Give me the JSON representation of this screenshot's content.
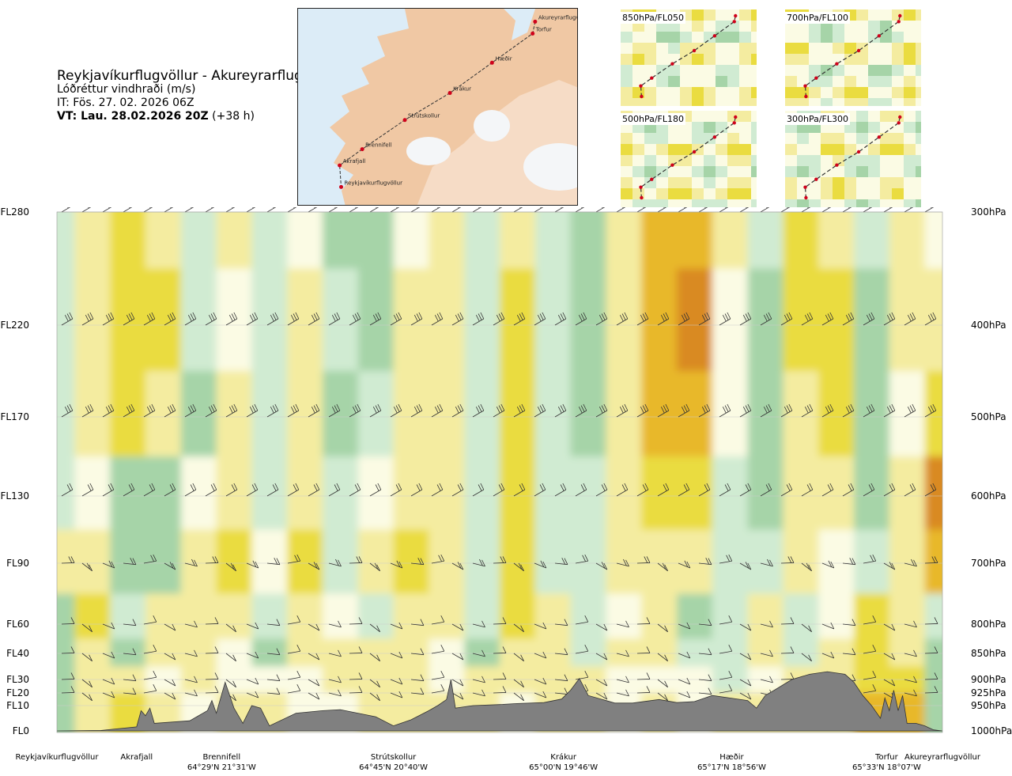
{
  "header": {
    "title": "Reykjavíkurflugvöllur - Akureyrarflugvöllur",
    "subtitle": "Lóðréttur vindhraði (m/s)",
    "issue_time": "IT: Fös. 27. 02. 2026 06Z",
    "valid_time_bold": "VT: Lau. 28.02.2026 20Z",
    "valid_time_rest": "(+38 h)"
  },
  "route_map": {
    "points": [
      {
        "name": "Akureyrarflugvöllur",
        "lon": -18.07,
        "lat": 65.66
      },
      {
        "name": "Torfur",
        "lon": -18.12,
        "lat": 65.55
      },
      {
        "name": "Hæðir",
        "lon": -18.93,
        "lat": 65.28
      },
      {
        "name": "Krákur",
        "lon": -19.77,
        "lat": 65.0
      },
      {
        "name": "Strútskollur",
        "lon": -20.67,
        "lat": 64.75
      },
      {
        "name": "Brennifell",
        "lon": -21.52,
        "lat": 64.48
      },
      {
        "name": "Akrafjall",
        "lon": -21.97,
        "lat": 64.33
      },
      {
        "name": "Reykjavíkurflugvöllur",
        "lon": -21.94,
        "lat": 64.13
      }
    ]
  },
  "mini_maps": [
    {
      "label": "850hPa/FL050"
    },
    {
      "label": "700hPa/FL100"
    },
    {
      "label": "500hPa/FL180"
    },
    {
      "label": "300hPa/FL300"
    }
  ],
  "chart_data": {
    "type": "heatmap",
    "title": "Reykjavíkurflugvöllur - Akureyrarflugvöllur",
    "variable": "Lóðréttur vindhraði (m/s)",
    "colors": {
      "strong_down": "#69b56c",
      "down": "#a6d4a8",
      "weak_down": "#d0ebd2",
      "neutral": "#fbfbe4",
      "weak_up": "#f4eca0",
      "up": "#eadc40",
      "strong_up": "#e8b82a",
      "very_strong_up": "#d98a24",
      "terrain": "#808080"
    },
    "left_axis_levels": [
      {
        "label": "FL280",
        "hpa": 300
      },
      {
        "label": "FL220",
        "hpa": 400
      },
      {
        "label": "FL170",
        "hpa": 500
      },
      {
        "label": "FL130",
        "hpa": 600
      },
      {
        "label": "FL90",
        "hpa": 700
      },
      {
        "label": "FL60",
        "hpa": 800
      },
      {
        "label": "FL40",
        "hpa": 850
      },
      {
        "label": "FL30",
        "hpa": 900
      },
      {
        "label": "FL20",
        "hpa": 925
      },
      {
        "label": "FL10",
        "hpa": 950
      },
      {
        "label": "FL0",
        "hpa": 1000
      }
    ],
    "right_axis_levels": [
      "300hPa",
      "400hPa",
      "500hPa",
      "600hPa",
      "700hPa",
      "800hPa",
      "850hPa",
      "900hPa",
      "925hPa",
      "950hPa",
      "1000hPa"
    ],
    "waypoints": [
      {
        "name": "Reykjavíkurflugvöllur",
        "coord": "",
        "pos": 0.0
      },
      {
        "name": "Akrafjall",
        "coord": "",
        "pos": 0.09
      },
      {
        "name": "Brennifell",
        "coord": "64°29'N 21°31'W",
        "pos": 0.186
      },
      {
        "name": "Strútskollur",
        "coord": "64°45'N 20°40'W",
        "pos": 0.38
      },
      {
        "name": "Krákur",
        "coord": "65°00'N 19°46'W",
        "pos": 0.572
      },
      {
        "name": "Hæðir",
        "coord": "65°17'N 18°56'W",
        "pos": 0.762
      },
      {
        "name": "Torfur",
        "coord": "65°33'N 18°07'W",
        "pos": 0.937
      },
      {
        "name": "Akureyrarflugvöllur",
        "coord": "",
        "pos": 1.0
      }
    ],
    "terrain_hpa": [
      [
        0.0,
        1000
      ],
      [
        0.05,
        999
      ],
      [
        0.09,
        992
      ],
      [
        0.095,
        960
      ],
      [
        0.1,
        970
      ],
      [
        0.105,
        955
      ],
      [
        0.11,
        985
      ],
      [
        0.15,
        980
      ],
      [
        0.17,
        960
      ],
      [
        0.175,
        940
      ],
      [
        0.18,
        965
      ],
      [
        0.19,
        905
      ],
      [
        0.2,
        955
      ],
      [
        0.21,
        985
      ],
      [
        0.22,
        950
      ],
      [
        0.23,
        955
      ],
      [
        0.24,
        990
      ],
      [
        0.27,
        965
      ],
      [
        0.3,
        960
      ],
      [
        0.32,
        958
      ],
      [
        0.34,
        965
      ],
      [
        0.36,
        972
      ],
      [
        0.38,
        990
      ],
      [
        0.4,
        978
      ],
      [
        0.42,
        960
      ],
      [
        0.43,
        950
      ],
      [
        0.44,
        938
      ],
      [
        0.445,
        900
      ],
      [
        0.45,
        955
      ],
      [
        0.47,
        950
      ],
      [
        0.5,
        948
      ],
      [
        0.52,
        946
      ],
      [
        0.55,
        944
      ],
      [
        0.57,
        937
      ],
      [
        0.58,
        920
      ],
      [
        0.59,
        898
      ],
      [
        0.6,
        930
      ],
      [
        0.63,
        945
      ],
      [
        0.65,
        945
      ],
      [
        0.68,
        938
      ],
      [
        0.7,
        944
      ],
      [
        0.72,
        942
      ],
      [
        0.74,
        930
      ],
      [
        0.76,
        935
      ],
      [
        0.78,
        940
      ],
      [
        0.79,
        955
      ],
      [
        0.8,
        930
      ],
      [
        0.81,
        920
      ],
      [
        0.83,
        900
      ],
      [
        0.85,
        890
      ],
      [
        0.87,
        885
      ],
      [
        0.89,
        890
      ],
      [
        0.9,
        905
      ],
      [
        0.91,
        930
      ],
      [
        0.92,
        950
      ],
      [
        0.93,
        975
      ],
      [
        0.935,
        935
      ],
      [
        0.94,
        960
      ],
      [
        0.945,
        920
      ],
      [
        0.95,
        960
      ],
      [
        0.955,
        930
      ],
      [
        0.96,
        985
      ],
      [
        0.97,
        985
      ],
      [
        0.98,
        990
      ],
      [
        0.99,
        998
      ],
      [
        1.0,
        1000
      ]
    ],
    "vertical_velocity": {
      "x": [
        0.0,
        0.04,
        0.08,
        0.12,
        0.16,
        0.2,
        0.24,
        0.28,
        0.32,
        0.36,
        0.4,
        0.44,
        0.48,
        0.52,
        0.56,
        0.6,
        0.64,
        0.68,
        0.72,
        0.76,
        0.8,
        0.84,
        0.88,
        0.92,
        0.96,
        1.0
      ],
      "levels_hpa": [
        300,
        400,
        500,
        600,
        700,
        800,
        850,
        900,
        950
      ],
      "values": [
        [
          -0.4,
          0.3,
          1.0,
          0.6,
          -0.2,
          0.3,
          -0.3,
          0.2,
          -0.6,
          -0.5,
          0.2,
          0.5,
          -0.2,
          0.6,
          -0.3,
          -0.6,
          0.4,
          1.6,
          1.8,
          0.3,
          -0.3,
          1.1,
          0.6,
          -0.4,
          0.3,
          0.2
        ],
        [
          -0.3,
          0.5,
          1.3,
          0.9,
          -0.4,
          0.2,
          -0.4,
          0.4,
          -0.3,
          -0.8,
          0.4,
          0.7,
          -0.4,
          0.9,
          -0.4,
          -0.7,
          0.5,
          2.0,
          2.2,
          0.2,
          -0.5,
          1.0,
          0.9,
          -0.8,
          0.4,
          0.3
        ],
        [
          -0.2,
          0.6,
          0.8,
          0.6,
          -0.5,
          0.3,
          -0.2,
          0.3,
          -0.5,
          -0.4,
          0.6,
          0.5,
          -0.4,
          0.8,
          -0.3,
          -0.6,
          0.6,
          1.5,
          1.6,
          0.2,
          -0.6,
          0.7,
          0.8,
          -0.6,
          0.2,
          0.8
        ],
        [
          -0.3,
          0.1,
          -0.6,
          -0.8,
          0.2,
          0.5,
          -0.4,
          0.6,
          -0.3,
          0.2,
          0.7,
          0.4,
          -0.2,
          1.0,
          -0.2,
          -0.4,
          0.4,
          0.9,
          1.0,
          -0.3,
          -0.5,
          0.4,
          0.3,
          -0.5,
          0.3,
          2.5
        ],
        [
          0.3,
          0.7,
          -0.5,
          -0.6,
          0.4,
          0.8,
          0.2,
          0.9,
          -0.2,
          0.4,
          1.0,
          0.5,
          -0.3,
          1.1,
          -0.2,
          -0.3,
          0.3,
          0.6,
          0.5,
          -0.4,
          -0.3,
          0.3,
          0.2,
          -0.3,
          0.4,
          1.5
        ],
        [
          -0.5,
          1.0,
          -0.3,
          0.6,
          0.3,
          0.5,
          -0.4,
          0.6,
          0.2,
          -0.3,
          0.6,
          0.4,
          -0.4,
          0.8,
          0.3,
          -0.3,
          0.2,
          0.3,
          -0.5,
          -0.3,
          0.4,
          -0.3,
          0.2,
          0.9,
          0.3,
          -0.4
        ],
        [
          -0.6,
          0.4,
          -0.5,
          0.3,
          0.4,
          0.2,
          -0.6,
          0.3,
          0.4,
          0.3,
          0.3,
          0.2,
          -0.6,
          0.4,
          0.5,
          -0.2,
          0.3,
          0.3,
          -0.4,
          -0.2,
          0.3,
          -0.2,
          0.3,
          1.1,
          0.5,
          -0.5
        ],
        [
          -0.6,
          0.3,
          0.6,
          0.2,
          0.3,
          0.2,
          0.2,
          0.1,
          0.3,
          0.4,
          0.3,
          0.2,
          0.4,
          0.3,
          0.7,
          0.5,
          0.2,
          0.2,
          0.1,
          -0.2,
          0.2,
          0.3,
          0.4,
          1.3,
          0.8,
          -0.6
        ],
        [
          -0.5,
          0.5,
          1.1,
          0.4,
          0.2,
          0.3,
          0.4,
          0.2,
          0.2,
          0.3,
          0.3,
          0.3,
          0.3,
          0.2,
          0.4,
          0.4,
          0.2,
          0.3,
          0.2,
          0.3,
          0.3,
          0.4,
          0.5,
          1.6,
          1.8,
          -0.6
        ]
      ]
    }
  }
}
